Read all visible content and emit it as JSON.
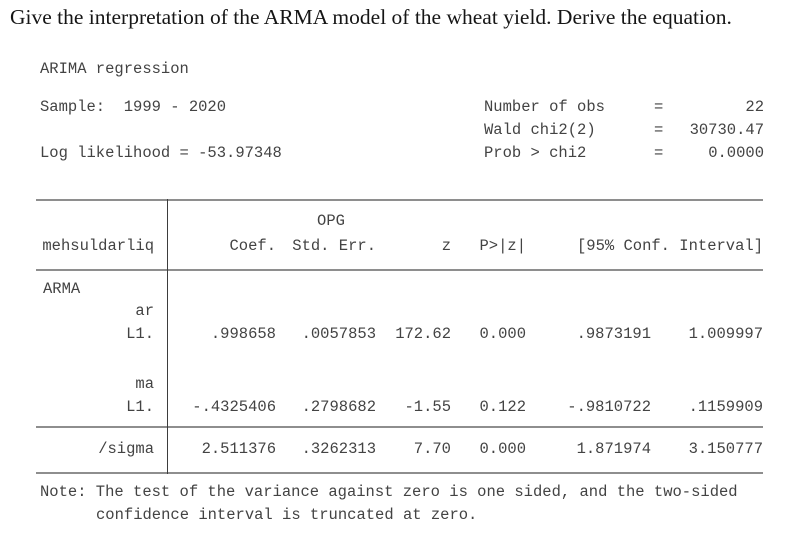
{
  "page": {
    "title": "Give the interpretation of the ARMA model of the wheat yield. Derive the equation."
  },
  "output": {
    "command": "ARIMA regression",
    "sample_line": "Sample:  1999 - 2020",
    "loglik_line": "Log likelihood = -53.97348",
    "stats": [
      {
        "label": "Number of obs",
        "eq": "=",
        "value": "22"
      },
      {
        "label": "Wald chi2(2)",
        "eq": "=",
        "value": "30730.47"
      },
      {
        "label": "Prob > chi2",
        "eq": "=",
        "value": "0.0000"
      }
    ],
    "table": {
      "depvar": "mehsuldarliq",
      "stderr_group_label": "OPG",
      "col_coef": "Coef.",
      "col_stderr": "Std. Err.",
      "col_z": "z",
      "col_p": "P>|z|",
      "col_ci": "[95% Conf. Interval]",
      "rows": [
        {
          "label": "ARMA"
        },
        {
          "label": "ar"
        },
        {
          "label": "L1.",
          "coef": ".998658",
          "stderr": ".0057853",
          "z": "172.62",
          "p": "0.000",
          "ci_low": ".9873191",
          "ci_high": "1.009997"
        },
        {
          "label": "ma"
        },
        {
          "label": "L1.",
          "coef": "-.4325406",
          "stderr": ".2798682",
          "z": "-1.55",
          "p": "0.122",
          "ci_low": "-.9810722",
          "ci_high": ".1159909"
        },
        {
          "label": "/sigma",
          "coef": "2.511376",
          "stderr": ".3262313",
          "z": "7.70",
          "p": "0.000",
          "ci_low": "1.871974",
          "ci_high": "3.150777"
        }
      ]
    },
    "note_line1": "Note: The test of the variance against zero is one sided, and the two-sided",
    "note_line2": "confidence interval is truncated at zero."
  }
}
